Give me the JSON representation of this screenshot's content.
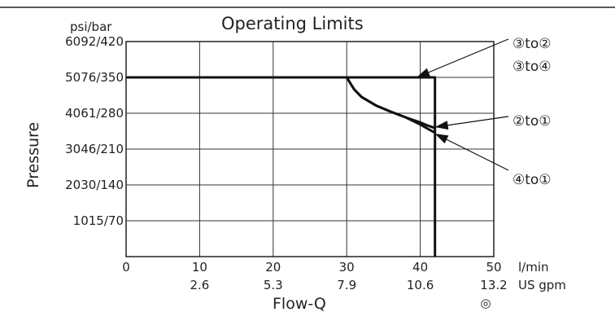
{
  "chart_data": {
    "type": "line",
    "title": "Operating Limits",
    "xlabel": "Flow-Q",
    "ylabel": "Pressure",
    "x_unit_primary": "l/min",
    "x_unit_secondary": "US gpm",
    "y_unit": "psi/bar",
    "xlim": [
      0,
      50
    ],
    "ylim": [
      0,
      420
    ],
    "grid": true,
    "x_ticks": [
      {
        "value": 0,
        "primary": "0",
        "secondary": ""
      },
      {
        "value": 10,
        "primary": "10",
        "secondary": "2.6"
      },
      {
        "value": 20,
        "primary": "20",
        "secondary": "5.3"
      },
      {
        "value": 30,
        "primary": "30",
        "secondary": "7.9"
      },
      {
        "value": 40,
        "primary": "40",
        "secondary": "10.6"
      },
      {
        "value": 50,
        "primary": "50",
        "secondary": "13.2"
      }
    ],
    "y_ticks": [
      {
        "value": 70,
        "label": "1015/70"
      },
      {
        "value": 140,
        "label": "2030/140"
      },
      {
        "value": 210,
        "label": "3046/210"
      },
      {
        "value": 280,
        "label": "4061/280"
      },
      {
        "value": 350,
        "label": "5076/350"
      },
      {
        "value": 420,
        "label": "6092/420"
      }
    ],
    "series": [
      {
        "x": [
          0,
          42,
          42
        ],
        "y": [
          350,
          350,
          0
        ]
      },
      {
        "x": [
          30,
          31,
          32,
          34,
          36,
          38,
          40,
          41,
          42
        ],
        "y": [
          350,
          327,
          312,
          295,
          283,
          272,
          258,
          250,
          242
        ]
      },
      {
        "x": [
          30,
          31,
          32,
          34,
          36,
          38,
          40,
          41,
          42
        ],
        "y": [
          350,
          327,
          312,
          295,
          283,
          272,
          262,
          256,
          251
        ]
      }
    ],
    "annotations": [
      {
        "label": "③to②",
        "x": 39.5,
        "y": 350
      },
      {
        "label": "③to④",
        "x": 0,
        "y": 0
      },
      {
        "label": "②to①",
        "x": 42,
        "y": 253
      },
      {
        "label": "④to①",
        "x": 42,
        "y": 240
      }
    ],
    "symbol": "◎"
  }
}
